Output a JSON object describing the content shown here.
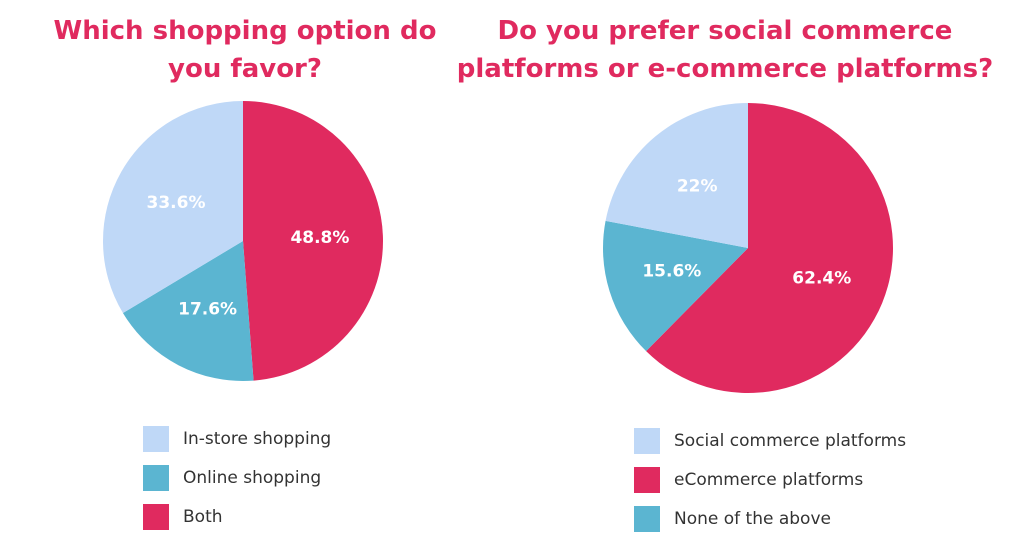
{
  "colors": {
    "title": "#e02a5f",
    "light_blue": "#bfd8f7",
    "teal": "#5bb5d1",
    "pink": "#e02a5f"
  },
  "chart_data": [
    {
      "type": "pie",
      "title": "Which shopping option do you favor?",
      "slices": [
        {
          "label": "Both",
          "value": 48.8,
          "display": "48.8%",
          "color": "#e02a5f"
        },
        {
          "label": "Online shopping",
          "value": 17.6,
          "display": "17.6%",
          "color": "#5bb5d1"
        },
        {
          "label": "In-store shopping",
          "value": 33.6,
          "display": "33.6%",
          "color": "#bfd8f7"
        }
      ],
      "legend": [
        {
          "label": "In-store shopping",
          "color": "#bfd8f7"
        },
        {
          "label": "Online shopping",
          "color": "#5bb5d1"
        },
        {
          "label": "Both",
          "color": "#e02a5f"
        }
      ],
      "legend_position": "bottom"
    },
    {
      "type": "pie",
      "title": "Do you prefer social commerce platforms or e-commerce platforms?",
      "slices": [
        {
          "label": "eCommerce platforms",
          "value": 62.4,
          "display": "62.4%",
          "color": "#e02a5f"
        },
        {
          "label": "None of the above",
          "value": 15.6,
          "display": "15.6%",
          "color": "#5bb5d1"
        },
        {
          "label": "Social commerce platforms",
          "value": 22,
          "display": "22%",
          "color": "#bfd8f7"
        }
      ],
      "legend": [
        {
          "label": "Social commerce platforms",
          "color": "#bfd8f7"
        },
        {
          "label": "eCommerce platforms",
          "color": "#e02a5f"
        },
        {
          "label": "None of the above",
          "color": "#5bb5d1"
        }
      ],
      "legend_position": "bottom"
    }
  ]
}
